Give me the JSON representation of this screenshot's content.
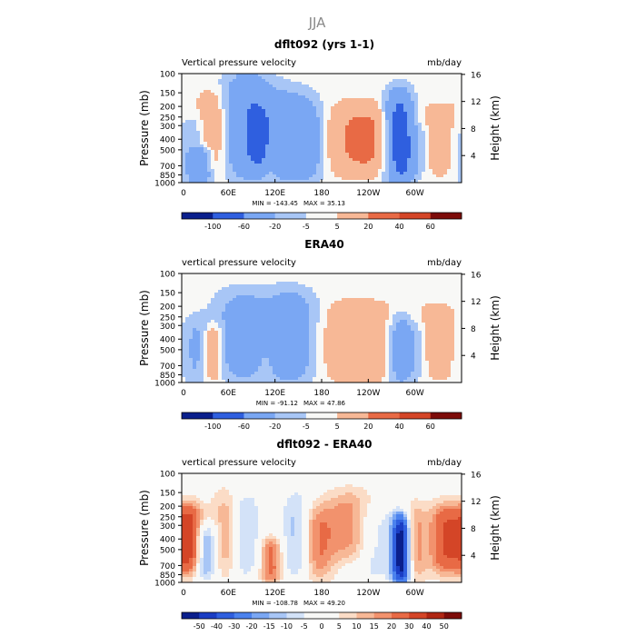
{
  "chart_data": {
    "type": "heatmap",
    "suptitle": "JJA",
    "panels": [
      {
        "id": "model",
        "title": "dflt092 (yrs 1-1)",
        "left_label": "Vertical pressure velocity",
        "right_label": "mb/day",
        "ylabel": "Pressure (mb)",
        "y2label": "Height (km)",
        "min_label": "MIN = -143.45",
        "max_label": "MAX = 35.13",
        "ylim": [
          1000,
          100
        ],
        "y2_ticks": [
          "4",
          "8",
          "12",
          "16"
        ],
        "x_ticks": [
          "0",
          "60E",
          "120E",
          "180",
          "120W",
          "60W"
        ],
        "y_ticks": [
          "100",
          "150",
          "200",
          "250",
          "300",
          "400",
          "500",
          "700",
          "850",
          "1000"
        ],
        "colorbar_levels": [
          "-100",
          "-60",
          "-20",
          "-5",
          "5",
          "20",
          "40",
          "60"
        ],
        "features": [
          {
            "lon": 10,
            "w": 14,
            "p_top": 250,
            "p_bot": 1000,
            "v": -22
          },
          {
            "lon": 25,
            "w": 10,
            "p_top": 500,
            "p_bot": 1000,
            "v": -45
          },
          {
            "lon": 42,
            "w": 13,
            "p_top": 150,
            "p_bot": 850,
            "v": 22
          },
          {
            "lon": 85,
            "w": 22,
            "p_top": 100,
            "p_bot": 900,
            "v": -55
          },
          {
            "lon": 100,
            "w": 9,
            "p_top": 200,
            "p_bot": 700,
            "v": -30
          },
          {
            "lon": 115,
            "w": 6,
            "p_top": 500,
            "p_bot": 1000,
            "v": 10
          },
          {
            "lon": 140,
            "w": 22,
            "p_top": 150,
            "p_bot": 950,
            "v": -48
          },
          {
            "lon": 165,
            "w": 12,
            "p_top": 200,
            "p_bot": 900,
            "v": -25
          },
          {
            "lon": 235,
            "w": 38,
            "p_top": 200,
            "p_bot": 800,
            "v": 22
          },
          {
            "lon": 280,
            "w": 12,
            "p_top": 150,
            "p_bot": 1000,
            "v": -90
          },
          {
            "lon": 300,
            "w": 10,
            "p_top": 300,
            "p_bot": 850,
            "v": -25
          },
          {
            "lon": 340,
            "w": 25,
            "p_top": 200,
            "p_bot": 850,
            "v": 9
          }
        ]
      },
      {
        "id": "obs",
        "title": "ERA40",
        "left_label": "vertical pressure velocity",
        "right_label": "mb/day",
        "ylabel": "Pressure (mb)",
        "y2label": "Height (km)",
        "min_label": "MIN = -91.12",
        "max_label": "MAX = 47.86",
        "ylim": [
          1000,
          100
        ],
        "y2_ticks": [
          "4",
          "8",
          "12",
          "16"
        ],
        "x_ticks": [
          "0",
          "60E",
          "120E",
          "180",
          "120W",
          "60W"
        ],
        "y_ticks": [
          "100",
          "150",
          "200",
          "250",
          "300",
          "400",
          "500",
          "700",
          "850",
          "1000"
        ],
        "colorbar_levels": [
          "-100",
          "-60",
          "-20",
          "-5",
          "5",
          "20",
          "40",
          "60"
        ],
        "features": [
          {
            "lon": 18,
            "w": 14,
            "p_top": 250,
            "p_bot": 950,
            "v": -25
          },
          {
            "lon": 40,
            "w": 9,
            "p_top": 300,
            "p_bot": 900,
            "v": 35
          },
          {
            "lon": 78,
            "w": 24,
            "p_top": 150,
            "p_bot": 950,
            "v": -40
          },
          {
            "lon": 108,
            "w": 8,
            "p_top": 300,
            "p_bot": 1000,
            "v": 12
          },
          {
            "lon": 140,
            "w": 22,
            "p_top": 150,
            "p_bot": 950,
            "v": -48
          },
          {
            "lon": 225,
            "w": 35,
            "p_top": 200,
            "p_bot": 900,
            "v": 18
          },
          {
            "lon": 282,
            "w": 10,
            "p_top": 250,
            "p_bot": 1000,
            "v": -45
          },
          {
            "lon": 300,
            "w": 9,
            "p_top": 300,
            "p_bot": 900,
            "v": -18
          },
          {
            "lon": 330,
            "w": 20,
            "p_top": 200,
            "p_bot": 900,
            "v": 9
          }
        ]
      },
      {
        "id": "diff",
        "title": "dflt092 - ERA40",
        "left_label": "vertical pressure velocity",
        "right_label": "mb/day",
        "ylabel": "Pressure (mb)",
        "y2label": "Height (km)",
        "min_label": "MIN = -108.78",
        "max_label": "MAX = 49.20",
        "ylim": [
          1000,
          100
        ],
        "y2_ticks": [
          "4",
          "8",
          "12",
          "16"
        ],
        "x_ticks": [
          "0",
          "60E",
          "120E",
          "180",
          "120W",
          "60W"
        ],
        "y_ticks": [
          "100",
          "150",
          "200",
          "250",
          "300",
          "400",
          "500",
          "700",
          "850",
          "1000"
        ],
        "colorbar_levels": [
          "-50",
          "-40",
          "-30",
          "-20",
          "-15",
          "-10",
          "-5",
          "0",
          "5",
          "10",
          "15",
          "20",
          "30",
          "40",
          "50"
        ],
        "features": [
          {
            "lon": 10,
            "w": 12,
            "p_top": 200,
            "p_bot": 800,
            "v": 32
          },
          {
            "lon": 30,
            "w": 10,
            "p_top": 300,
            "p_bot": 900,
            "v": -22
          },
          {
            "lon": 58,
            "w": 12,
            "p_top": 150,
            "p_bot": 850,
            "v": 15
          },
          {
            "lon": 80,
            "w": 16,
            "p_top": 150,
            "p_bot": 900,
            "v": -14
          },
          {
            "lon": 115,
            "w": 10,
            "p_top": 400,
            "p_bot": 1000,
            "v": 22
          },
          {
            "lon": 148,
            "w": 14,
            "p_top": 150,
            "p_bot": 950,
            "v": -15
          },
          {
            "lon": 175,
            "w": 15,
            "p_top": 200,
            "p_bot": 900,
            "v": 18
          },
          {
            "lon": 215,
            "w": 20,
            "p_top": 150,
            "p_bot": 600,
            "v": 16
          },
          {
            "lon": 250,
            "w": 18,
            "p_top": 200,
            "p_bot": 1000,
            "v": -10
          },
          {
            "lon": 282,
            "w": 8,
            "p_top": 250,
            "p_bot": 1000,
            "v": -60
          },
          {
            "lon": 300,
            "w": 10,
            "p_top": 200,
            "p_bot": 900,
            "v": 15
          },
          {
            "lon": 340,
            "w": 15,
            "p_top": 200,
            "p_bot": 800,
            "v": 28
          }
        ]
      }
    ]
  }
}
